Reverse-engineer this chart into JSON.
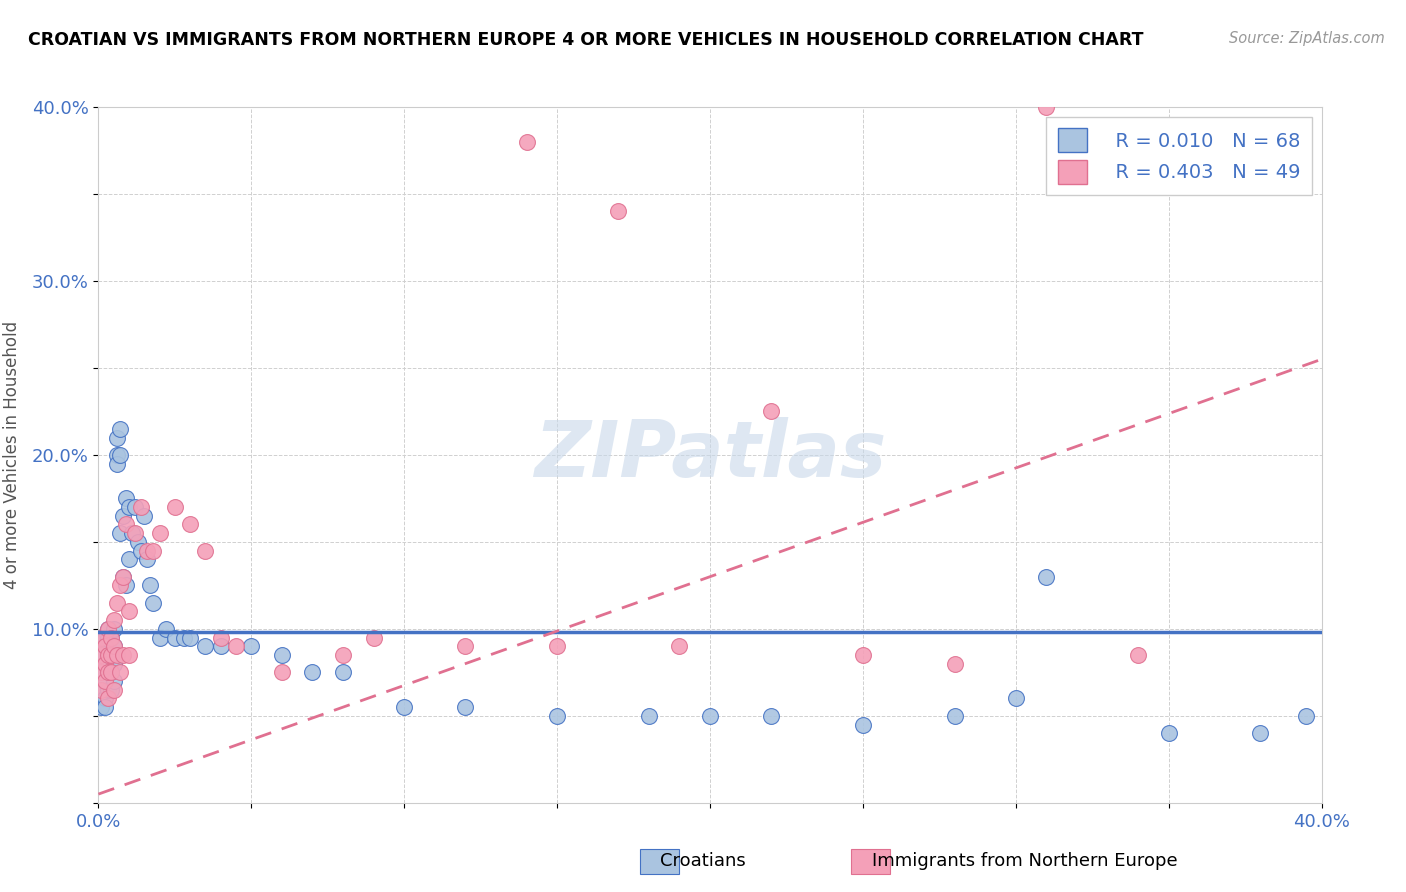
{
  "title": "CROATIAN VS IMMIGRANTS FROM NORTHERN EUROPE 4 OR MORE VEHICLES IN HOUSEHOLD CORRELATION CHART",
  "source": "Source: ZipAtlas.com",
  "ylabel": "4 or more Vehicles in Household",
  "xlim": [
    0.0,
    0.4
  ],
  "ylim": [
    0.0,
    0.4
  ],
  "legend_r1": "R = 0.010",
  "legend_n1": "N = 68",
  "legend_r2": "R = 0.403",
  "legend_n2": "N = 49",
  "color_blue": "#aac4e0",
  "color_pink": "#f4a0b8",
  "color_blue_dark": "#4472c4",
  "color_pink_dark": "#e07090",
  "watermark": "ZIPatlas",
  "watermark_color": "#c8d8ea",
  "blue_trend": [
    0.0,
    0.4,
    0.098,
    0.098
  ],
  "pink_trend": [
    0.0,
    0.4,
    0.005,
    0.255
  ],
  "blue_scatter_x": [
    0.001,
    0.001,
    0.001,
    0.001,
    0.001,
    0.002,
    0.002,
    0.002,
    0.002,
    0.002,
    0.002,
    0.003,
    0.003,
    0.003,
    0.003,
    0.003,
    0.004,
    0.004,
    0.004,
    0.004,
    0.005,
    0.005,
    0.005,
    0.005,
    0.006,
    0.006,
    0.006,
    0.007,
    0.007,
    0.007,
    0.008,
    0.008,
    0.009,
    0.009,
    0.01,
    0.01,
    0.011,
    0.012,
    0.013,
    0.014,
    0.015,
    0.016,
    0.017,
    0.018,
    0.02,
    0.022,
    0.025,
    0.028,
    0.03,
    0.035,
    0.04,
    0.05,
    0.06,
    0.07,
    0.08,
    0.1,
    0.12,
    0.15,
    0.18,
    0.2,
    0.22,
    0.25,
    0.28,
    0.3,
    0.31,
    0.35,
    0.38,
    0.395
  ],
  "blue_scatter_y": [
    0.065,
    0.075,
    0.085,
    0.095,
    0.055,
    0.07,
    0.08,
    0.09,
    0.06,
    0.095,
    0.055,
    0.075,
    0.085,
    0.095,
    0.065,
    0.1,
    0.085,
    0.075,
    0.095,
    0.065,
    0.09,
    0.08,
    0.07,
    0.1,
    0.2,
    0.21,
    0.195,
    0.2,
    0.215,
    0.155,
    0.165,
    0.13,
    0.175,
    0.125,
    0.17,
    0.14,
    0.155,
    0.17,
    0.15,
    0.145,
    0.165,
    0.14,
    0.125,
    0.115,
    0.095,
    0.1,
    0.095,
    0.095,
    0.095,
    0.09,
    0.09,
    0.09,
    0.085,
    0.075,
    0.075,
    0.055,
    0.055,
    0.05,
    0.05,
    0.05,
    0.05,
    0.045,
    0.05,
    0.06,
    0.13,
    0.04,
    0.04,
    0.05
  ],
  "pink_scatter_x": [
    0.001,
    0.001,
    0.001,
    0.001,
    0.002,
    0.002,
    0.002,
    0.003,
    0.003,
    0.003,
    0.003,
    0.004,
    0.004,
    0.004,
    0.005,
    0.005,
    0.005,
    0.006,
    0.006,
    0.007,
    0.007,
    0.008,
    0.008,
    0.009,
    0.01,
    0.01,
    0.012,
    0.014,
    0.016,
    0.018,
    0.02,
    0.025,
    0.03,
    0.035,
    0.04,
    0.045,
    0.06,
    0.08,
    0.09,
    0.12,
    0.14,
    0.15,
    0.17,
    0.19,
    0.22,
    0.25,
    0.28,
    0.31,
    0.34
  ],
  "pink_scatter_y": [
    0.075,
    0.085,
    0.095,
    0.065,
    0.09,
    0.08,
    0.07,
    0.1,
    0.085,
    0.075,
    0.06,
    0.095,
    0.085,
    0.075,
    0.105,
    0.09,
    0.065,
    0.115,
    0.085,
    0.125,
    0.075,
    0.13,
    0.085,
    0.16,
    0.11,
    0.085,
    0.155,
    0.17,
    0.145,
    0.145,
    0.155,
    0.17,
    0.16,
    0.145,
    0.095,
    0.09,
    0.075,
    0.085,
    0.095,
    0.09,
    0.38,
    0.09,
    0.34,
    0.09,
    0.225,
    0.085,
    0.08,
    0.4,
    0.085
  ]
}
